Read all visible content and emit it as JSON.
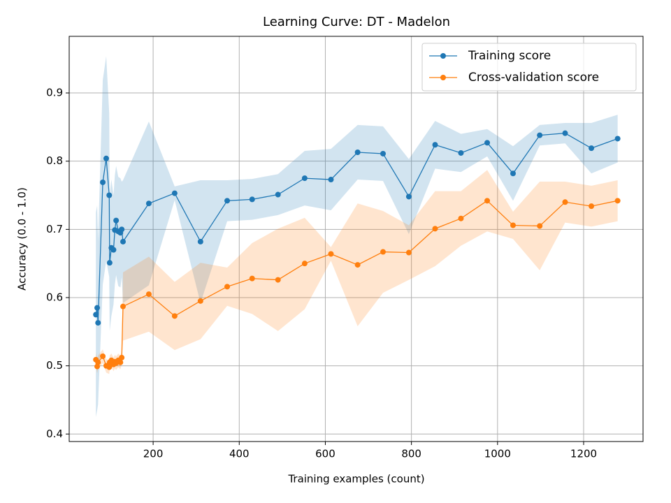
{
  "chart_data": {
    "type": "line",
    "title": "Learning Curve: DT - Madelon",
    "xlabel": "Training examples (count)",
    "ylabel": "Accuracy (0.0 - 1.0)",
    "x": [
      67,
      70,
      72,
      83,
      91,
      98,
      99,
      103,
      108,
      111,
      114,
      119,
      124,
      127,
      130,
      190,
      250,
      310,
      372,
      430,
      490,
      552,
      613,
      675,
      734,
      794,
      855,
      915,
      976,
      1036,
      1098,
      1157,
      1218,
      1279
    ],
    "series": [
      {
        "name": "Training score",
        "color": "#1f77b4",
        "values": [
          0.575,
          0.585,
          0.563,
          0.769,
          0.804,
          0.75,
          0.651,
          0.673,
          0.67,
          0.699,
          0.713,
          0.697,
          0.695,
          0.7,
          0.682,
          0.738,
          0.753,
          0.682,
          0.742,
          0.744,
          0.751,
          0.775,
          0.773,
          0.813,
          0.811,
          0.748,
          0.824,
          0.812,
          0.827,
          0.782,
          0.838,
          0.841,
          0.819,
          0.833
        ],
        "std": [
          0.15,
          0.15,
          0.12,
          0.15,
          0.15,
          0.12,
          0.1,
          0.1,
          0.08,
          0.08,
          0.08,
          0.08,
          0.08,
          0.07,
          0.09,
          0.12,
          0.01,
          0.09,
          0.03,
          0.03,
          0.03,
          0.04,
          0.045,
          0.04,
          0.04,
          0.055,
          0.035,
          0.028,
          0.02,
          0.04,
          0.015,
          0.015,
          0.037,
          0.035
        ]
      },
      {
        "name": "Cross-validation score",
        "color": "#ff7f0e",
        "values": [
          0.509,
          0.499,
          0.505,
          0.514,
          0.5,
          0.498,
          0.505,
          0.508,
          0.502,
          0.506,
          0.504,
          0.508,
          0.505,
          0.512,
          0.587,
          0.605,
          0.573,
          0.595,
          0.616,
          0.628,
          0.626,
          0.65,
          0.664,
          0.648,
          0.667,
          0.666,
          0.701,
          0.716,
          0.742,
          0.706,
          0.705,
          0.74,
          0.734,
          0.742
        ],
        "std": [
          0.01,
          0.01,
          0.01,
          0.01,
          0.01,
          0.01,
          0.01,
          0.01,
          0.01,
          0.01,
          0.01,
          0.01,
          0.01,
          0.01,
          0.05,
          0.055,
          0.05,
          0.056,
          0.028,
          0.052,
          0.075,
          0.067,
          0.01,
          0.09,
          0.06,
          0.04,
          0.055,
          0.04,
          0.045,
          0.02,
          0.065,
          0.03,
          0.03,
          0.03
        ]
      }
    ],
    "xlim": [
      5,
      1338
    ],
    "ylim": [
      0.389,
      0.983
    ],
    "xticks": [
      200,
      400,
      600,
      800,
      1000,
      1200
    ],
    "yticks": [
      0.4,
      0.5,
      0.6,
      0.7,
      0.8,
      0.9
    ],
    "grid": true,
    "legend": "upper right"
  }
}
